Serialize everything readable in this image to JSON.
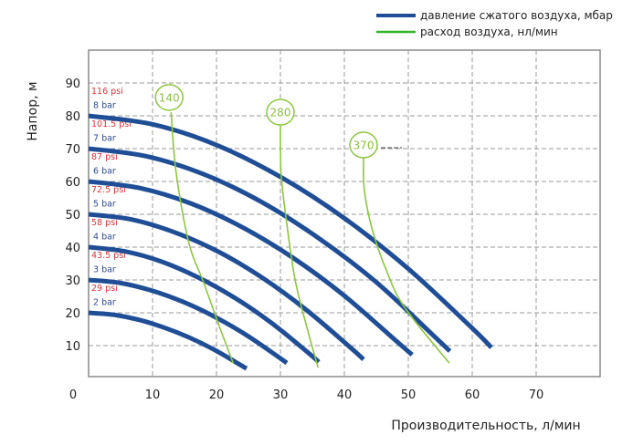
{
  "chart_data": {
    "type": "line",
    "xlabel": "Производительность, л/мин",
    "ylabel": "Напор, м",
    "xlim": [
      0,
      80
    ],
    "ylim": [
      0,
      100
    ],
    "xticks": [
      0,
      10,
      20,
      30,
      40,
      50,
      60,
      70
    ],
    "yticks": [
      10,
      20,
      30,
      40,
      50,
      60,
      70,
      80,
      90
    ],
    "grid": true,
    "legend_position": "top-right",
    "legend": [
      {
        "label": "давление сжатого воздуха, мбар",
        "color": "#1f4e96"
      },
      {
        "label": "расход воздуха, нл/мин",
        "color": "#8cc63f"
      }
    ],
    "pressure_series": [
      {
        "bar": "8 bar",
        "psi": "116 psi",
        "x": [
          0,
          10,
          20,
          30,
          40,
          50,
          60,
          63
        ],
        "y": [
          80,
          77.4,
          71.1,
          61.4,
          48.8,
          33.4,
          15.3,
          9.4
        ]
      },
      {
        "bar": "7 bar",
        "psi": "101.5 psi",
        "x": [
          0,
          9,
          18,
          27,
          36,
          45,
          53.7,
          56.5
        ],
        "y": [
          70,
          67.7,
          62.2,
          53.8,
          42.7,
          29.3,
          13.5,
          8.3
        ]
      },
      {
        "bar": "6 bar",
        "psi": "87 psi",
        "x": [
          0,
          8,
          16,
          24,
          32,
          40,
          48,
          50.6
        ],
        "y": [
          60,
          58,
          53.3,
          46.1,
          36.7,
          25.2,
          11.6,
          7.2
        ]
      },
      {
        "bar": "5 bar",
        "psi": "72.5 psi",
        "x": [
          0,
          6.8,
          13.6,
          20.5,
          27.3,
          34.1,
          40.9,
          43
        ],
        "y": [
          50,
          48.4,
          44.4,
          38.4,
          30.5,
          20.8,
          9.5,
          5.8
        ]
      },
      {
        "bar": "4 bar",
        "psi": "58 psi",
        "x": [
          0,
          5.7,
          11.4,
          17.1,
          22.9,
          28.6,
          34.3,
          36
        ],
        "y": [
          40,
          38.7,
          35.6,
          30.8,
          24.5,
          16.9,
          7.9,
          5
        ]
      },
      {
        "bar": "3 bar",
        "psi": "43.5 psi",
        "x": [
          0,
          4.9,
          9.8,
          14.8,
          19.7,
          24.6,
          29.5,
          31
        ],
        "y": [
          30,
          29.1,
          26.8,
          23.3,
          18.8,
          13.3,
          6.8,
          4.7
        ]
      },
      {
        "bar": "2 bar",
        "psi": "29 psi",
        "x": [
          0,
          3.9,
          7.8,
          11.8,
          15.7,
          19.6,
          23.5,
          24.7
        ],
        "y": [
          20,
          19.4,
          17.9,
          15.5,
          12.5,
          8.8,
          4.4,
          3
        ]
      }
    ],
    "airflow_series": [
      {
        "label": "140",
        "label_at": [
          12.6,
          85.6
        ],
        "x": [
          12.9,
          13.7,
          15.7,
          18,
          20.4,
          22.6
        ],
        "y": [
          81.1,
          62.5,
          41.1,
          29.2,
          16.1,
          4.7
        ]
      },
      {
        "label": "280",
        "label_at": [
          30,
          81.1
        ],
        "x": [
          30,
          30.1,
          30.9,
          32.3,
          34.3,
          35.9
        ],
        "y": [
          76.9,
          62.5,
          48.6,
          30,
          14.4,
          3.3
        ]
      },
      {
        "label": "370",
        "label_at": [
          43,
          71.1
        ],
        "x": [
          43,
          43.1,
          44.3,
          46.6,
          49.4,
          56.4
        ],
        "y": [
          67.2,
          57.8,
          45.8,
          32.8,
          21.7,
          4.7
        ]
      }
    ],
    "colors": {
      "pressure": "#1f4e96",
      "airflow": "#8cc63f",
      "psi_label": "#d9343a",
      "bar_label": "#2e4d8f"
    }
  }
}
